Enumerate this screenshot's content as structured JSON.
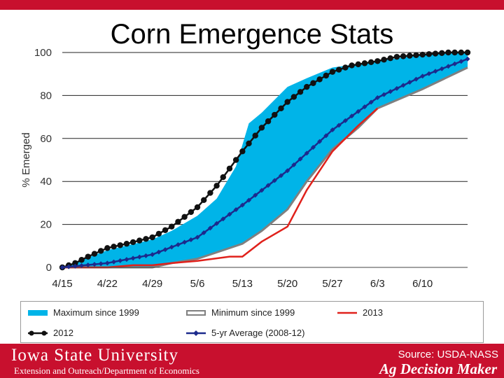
{
  "slide": {
    "title": "Corn Emergence Stats",
    "university": "Iowa State University",
    "department": "Extension and Outreach/Department of Economics",
    "source": "Source: USDA-NASS",
    "brand": "Ag Decision Maker"
  },
  "colors": {
    "brand_red": "#c8102e",
    "max_fill": "#00b4e8",
    "min_line": "#808080",
    "y2013": "#e0211b",
    "y2012": "#111111",
    "avg": "#1c2a8c"
  },
  "chart_data": {
    "type": "line",
    "ylabel": "% Emerged",
    "xlabel": "",
    "ylim": [
      0,
      100
    ],
    "yticks": [
      0,
      20,
      40,
      60,
      80,
      100
    ],
    "xlim": [
      0,
      63
    ],
    "xticks": [
      {
        "day": 0,
        "label": "4/15"
      },
      {
        "day": 7,
        "label": "4/22"
      },
      {
        "day": 14,
        "label": "4/29"
      },
      {
        "day": 21,
        "label": "5/6"
      },
      {
        "day": 28,
        "label": "5/13"
      },
      {
        "day": 35,
        "label": "5/20"
      },
      {
        "day": 42,
        "label": "5/27"
      },
      {
        "day": 49,
        "label": "6/3"
      },
      {
        "day": 56,
        "label": "6/10"
      }
    ],
    "gridlines": "horizontal",
    "series": [
      {
        "name": "Maximum since 1999",
        "kind": "band-upper",
        "x": [
          0,
          7,
          14,
          17,
          21,
          24,
          27,
          29,
          31,
          35,
          38,
          42,
          49,
          56,
          63
        ],
        "values": [
          0,
          8,
          13,
          17,
          24,
          32,
          47,
          67,
          72,
          84,
          88,
          93,
          96,
          99,
          100
        ]
      },
      {
        "name": "Minimum since 1999",
        "kind": "band-lower",
        "x": [
          0,
          7,
          14,
          17,
          21,
          24,
          28,
          31,
          35,
          38,
          42,
          46,
          49,
          56,
          63
        ],
        "values": [
          0,
          0,
          0,
          2,
          4,
          7,
          11,
          17,
          27,
          40,
          55,
          65,
          74,
          83,
          93
        ]
      },
      {
        "name": "2013",
        "kind": "line",
        "x": [
          0,
          7,
          11,
          14,
          17,
          21,
          26,
          28,
          31,
          35,
          38,
          42,
          46,
          49
        ],
        "values": [
          0,
          0,
          1,
          1,
          2,
          3,
          5,
          5,
          12,
          19,
          36,
          54,
          66,
          74
        ]
      },
      {
        "name": "2012",
        "kind": "marker-line",
        "x": [
          0,
          2,
          4,
          7,
          10,
          14,
          17,
          21,
          24,
          26,
          28,
          31,
          35,
          38,
          42,
          45,
          49,
          52,
          56,
          60,
          63
        ],
        "values": [
          0,
          2,
          5,
          9,
          11,
          14,
          19,
          28,
          38,
          46,
          54,
          65,
          77,
          84,
          91,
          94,
          96,
          98,
          99,
          100,
          100
        ]
      },
      {
        "name": "5-yr Average (2008-12)",
        "kind": "marker-line",
        "x": [
          0,
          7,
          14,
          21,
          28,
          35,
          42,
          49,
          56,
          63
        ],
        "values": [
          0,
          2,
          6,
          14,
          29,
          45,
          64,
          79,
          89,
          97
        ]
      }
    ]
  }
}
